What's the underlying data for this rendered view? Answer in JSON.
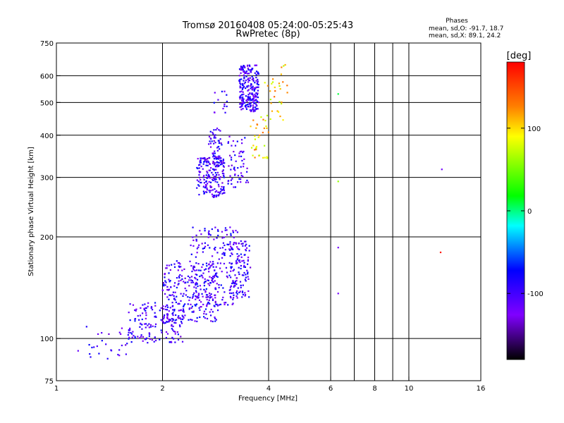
{
  "chart_data": {
    "type": "scatter",
    "title": "Tromsø 20160408 05:24:00-05:25:43",
    "subtitle": "RwPretec (8p)",
    "xlabel": "Frequency [MHz]",
    "ylabel": "Stationary phase Virtual Height [km]",
    "xscale": "log",
    "yscale": "log",
    "xlim": [
      1,
      16
    ],
    "ylim": [
      75,
      750
    ],
    "x_ticks": [
      1,
      2,
      4,
      6,
      8,
      10,
      16
    ],
    "y_ticks": [
      75,
      100,
      200,
      300,
      400,
      500,
      600,
      750
    ],
    "grid_x": [
      2,
      4,
      6,
      7,
      8,
      9,
      10
    ],
    "grid_y": [
      100,
      200,
      300,
      400,
      500,
      600
    ],
    "stats": {
      "heading": "Phases",
      "line1": "mean, sd,O: -91.7, 18.7",
      "line2": "mean, sd,X:  89.1, 24.2"
    },
    "colorbar": {
      "label": "[deg]",
      "range": [
        -180,
        180
      ],
      "ticks": [
        100,
        0,
        -100
      ],
      "colors": [
        "#ff0000",
        "#ff8000",
        "#ffff00",
        "#00ff00",
        "#00ffff",
        "#0000ff",
        "#8000ff",
        "#000000"
      ]
    },
    "series": [
      {
        "phase_deg": -100,
        "clusters": [
          {
            "x": [
              1.15,
              1.6
            ],
            "y": [
              85,
              112
            ],
            "n": 28
          },
          {
            "x": [
              1.6,
              2.3
            ],
            "y": [
              97,
              128
            ],
            "n": 170
          },
          {
            "x": [
              2.0,
              2.9
            ],
            "y": [
              112,
              170
            ],
            "n": 250
          },
          {
            "x": [
              2.4,
              3.3
            ],
            "y": [
              125,
              215
            ],
            "n": 190
          },
          {
            "x": [
              3.1,
              3.55
            ],
            "y": [
              132,
              195
            ],
            "n": 110
          },
          {
            "x": [
              2.5,
              3.0
            ],
            "y": [
              262,
              345
            ],
            "n": 200
          },
          {
            "x": [
              2.7,
              2.95
            ],
            "y": [
              340,
              420
            ],
            "n": 50
          },
          {
            "x": [
              3.3,
              3.75
            ],
            "y": [
              470,
              645
            ],
            "n": 240
          },
          {
            "x": [
              3.05,
              3.5
            ],
            "y": [
              280,
              400
            ],
            "n": 60
          },
          {
            "x": [
              2.8,
              3.05
            ],
            "y": [
              465,
              540
            ],
            "n": 14
          }
        ]
      },
      {
        "phase_deg": 100,
        "clusters": [
          {
            "x": [
              3.9,
              4.55
            ],
            "y": [
              440,
              660
            ],
            "n": 30
          },
          {
            "x": [
              3.55,
              4.0
            ],
            "y": [
              340,
              470
            ],
            "n": 35
          }
        ]
      },
      {
        "phase_deg": 170,
        "points": [
          {
            "x": 12.3,
            "y": 180
          }
        ]
      },
      {
        "phase_deg": -120,
        "points": [
          {
            "x": 12.4,
            "y": 317
          },
          {
            "x": 6.3,
            "y": 186
          },
          {
            "x": 6.3,
            "y": 136
          }
        ]
      },
      {
        "phase_deg": 60,
        "points": [
          {
            "x": 6.3,
            "y": 292
          }
        ]
      },
      {
        "phase_deg": 10,
        "points": [
          {
            "x": 6.3,
            "y": 530
          }
        ]
      }
    ]
  }
}
